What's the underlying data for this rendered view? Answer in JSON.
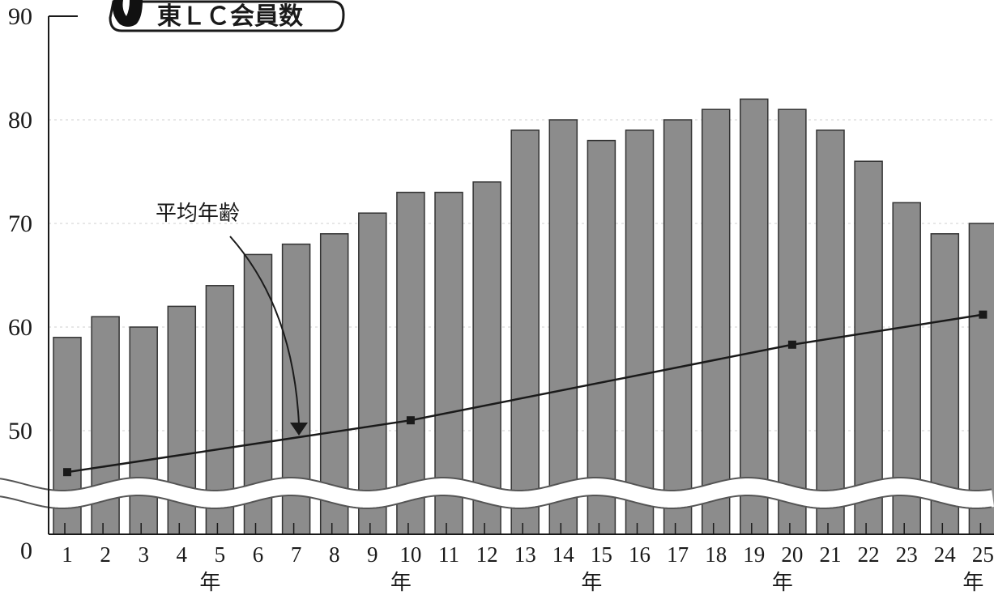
{
  "chart_data": {
    "type": "bar",
    "title": "東ＬＣ会員数",
    "categories": [
      "1",
      "2",
      "3",
      "4",
      "5",
      "6",
      "7",
      "8",
      "9",
      "10",
      "11",
      "12",
      "13",
      "14",
      "15",
      "16",
      "17",
      "18",
      "19",
      "20",
      "21",
      "22",
      "23",
      "24",
      "25"
    ],
    "category_unit_label": "年",
    "year_unit_positions": [
      "5",
      "10",
      "15",
      "20",
      "25"
    ],
    "y_ticks": [
      "0",
      "50",
      "60",
      "70",
      "80",
      "90"
    ],
    "ylim": [
      40,
      90
    ],
    "axis_break": true,
    "grid": true,
    "series": [
      {
        "type": "bar",
        "values": [
          59,
          61,
          60,
          62,
          64,
          67,
          68,
          69,
          71,
          73,
          73,
          74,
          79,
          80,
          78,
          79,
          80,
          81,
          82,
          81,
          79,
          76,
          72,
          69,
          70
        ],
        "color": "#8c8c8c"
      },
      {
        "type": "line",
        "name": "平均年齢",
        "points": [
          {
            "x": "1",
            "y": 46
          },
          {
            "x": "10",
            "y": 51
          },
          {
            "x": "20",
            "y": 58.3
          },
          {
            "x": "25",
            "y": 61.2
          }
        ],
        "color": "#1a1a1a"
      }
    ],
    "annotation": "平均年齢"
  }
}
